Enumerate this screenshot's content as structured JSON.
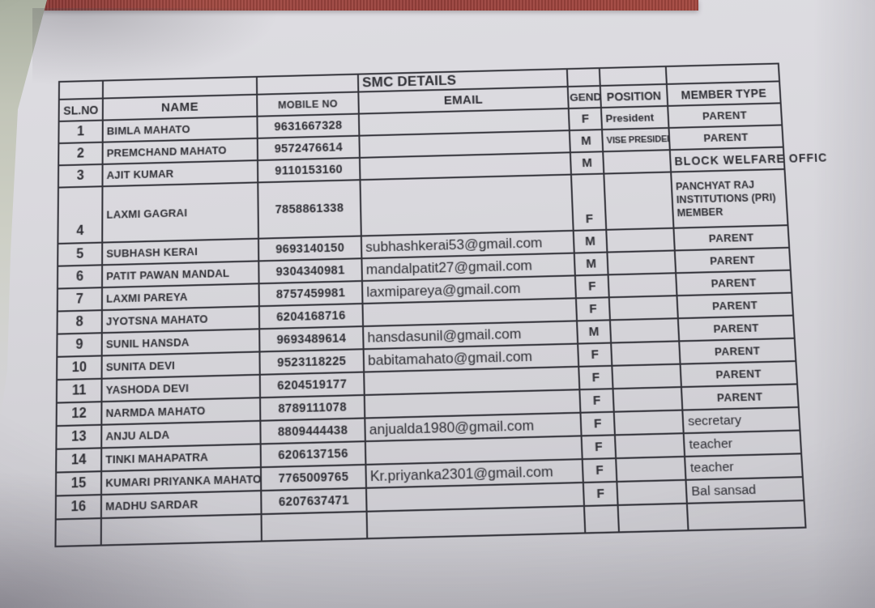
{
  "document": {
    "title": "SMC DETAILS",
    "columns": [
      "SL.NO",
      "NAME",
      "MOBILE NO",
      "EMAIL",
      "GEND",
      "POSITION",
      "MEMBER TYPE"
    ],
    "rows": [
      {
        "sl": "1",
        "name": "BIMLA MAHATO",
        "mobile": "9631667328",
        "email": "",
        "gender": "F",
        "position": "President",
        "member_type": "PARENT"
      },
      {
        "sl": "2",
        "name": "PREMCHAND MAHATO",
        "mobile": "9572476614",
        "email": "",
        "gender": "M",
        "position": "VISE PRESIDEN",
        "member_type": "PARENT",
        "position_small": true
      },
      {
        "sl": "3",
        "name": "AJIT KUMAR",
        "mobile": "9110153160",
        "email": "",
        "gender": "M",
        "position": "",
        "member_type": "BLOCK WELFARE OFFIC",
        "overflow": true
      },
      {
        "sl": "4",
        "name": "LAXMI GAGRAI",
        "mobile": "7858861338",
        "email": "",
        "gender": "F",
        "position": "",
        "member_type": "PANCHYAT RAJ INSTITUTIONS (PRI) MEMBER",
        "tall": true
      },
      {
        "sl": "5",
        "name": "SUBHASH KERAI",
        "mobile": "9693140150",
        "email": "subhashkerai53@gmail.com",
        "gender": "M",
        "position": "",
        "member_type": "PARENT"
      },
      {
        "sl": "6",
        "name": "PATIT PAWAN MANDAL",
        "mobile": "9304340981",
        "email": "mandalpatit27@gmail.com",
        "gender": "M",
        "position": "",
        "member_type": "PARENT"
      },
      {
        "sl": "7",
        "name": "LAXMI PAREYA",
        "mobile": "8757459981",
        "email": "laxmipareya@gmail.com",
        "gender": "F",
        "position": "",
        "member_type": "PARENT"
      },
      {
        "sl": "8",
        "name": "JYOTSNA MAHATO",
        "mobile": "6204168716",
        "email": "",
        "gender": "F",
        "position": "",
        "member_type": "PARENT"
      },
      {
        "sl": "9",
        "name": "SUNIL HANSDA",
        "mobile": "9693489614",
        "email": "hansdasunil@gmail.com",
        "gender": "M",
        "position": "",
        "member_type": "PARENT"
      },
      {
        "sl": "10",
        "name": "SUNITA DEVI",
        "mobile": "9523118225",
        "email": "babitamahato@gmail.com",
        "gender": "F",
        "position": "",
        "member_type": "PARENT"
      },
      {
        "sl": "11",
        "name": "YASHODA DEVI",
        "mobile": "6204519177",
        "email": "",
        "gender": "F",
        "position": "",
        "member_type": "PARENT"
      },
      {
        "sl": "12",
        "name": "NARMDA MAHATO",
        "mobile": "8789111078",
        "email": "",
        "gender": "F",
        "position": "",
        "member_type": "PARENT"
      },
      {
        "sl": "13",
        "name": "ANJU ALDA",
        "mobile": "8809444438",
        "email": "anjualda1980@gmail.com",
        "gender": "F",
        "position": "",
        "member_type": "secretary",
        "member_style": "lower"
      },
      {
        "sl": "14",
        "name": "TINKI MAHAPATRA",
        "mobile": "6206137156",
        "email": "",
        "gender": "F",
        "position": "",
        "member_type": "teacher",
        "member_style": "lower"
      },
      {
        "sl": "15",
        "name": "KUMARI PRIYANKA MAHATO",
        "mobile": "7765009765",
        "email": "Kr.priyanka2301@gmail.com",
        "gender": "F",
        "position": "",
        "member_type": "teacher",
        "member_style": "lower"
      },
      {
        "sl": "16",
        "name": "MADHU SARDAR",
        "mobile": "6207637471",
        "email": "",
        "gender": "F",
        "position": "",
        "member_type": "Bal sansad",
        "member_style": "lower"
      },
      {
        "sl": "",
        "name": "",
        "mobile": "",
        "email": "",
        "gender": "",
        "position": "",
        "member_type": ""
      }
    ],
    "colors": {
      "folder_edge_red": "#9a423d",
      "paper": "#d7d6db",
      "table_line": "#33333a",
      "ink": "#2e2e34"
    }
  }
}
